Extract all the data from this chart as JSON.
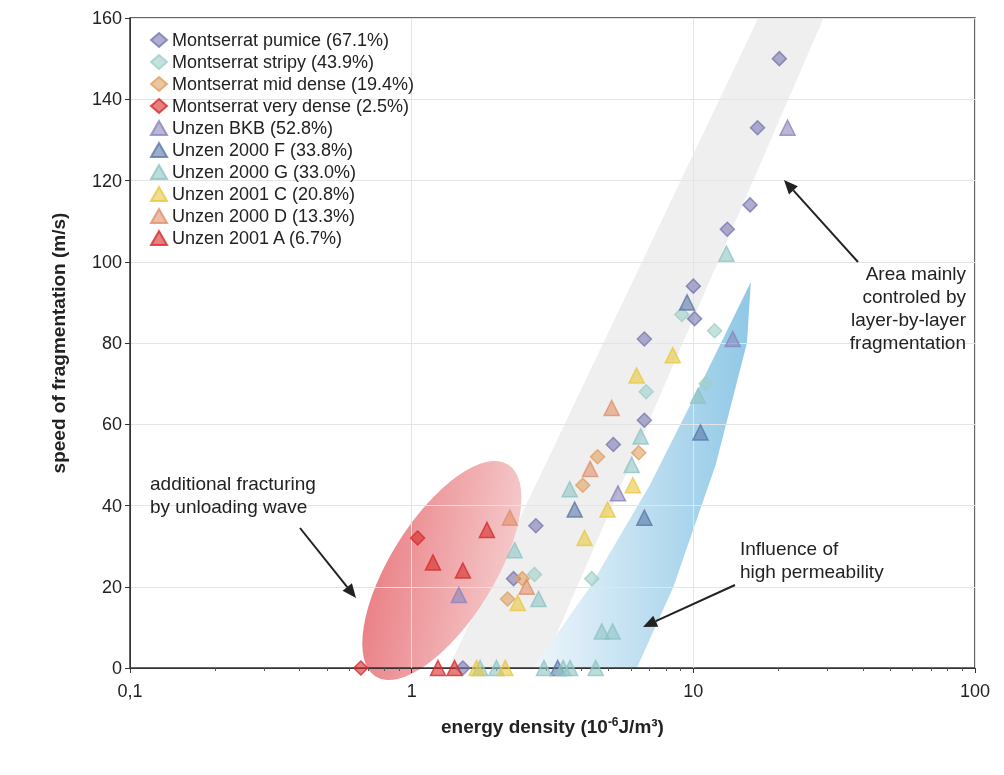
{
  "chart_data": {
    "type": "scatter",
    "xlabel": "energy density (10$^{-6}$J/m³)",
    "ylabel": "speed of fragmentation (m/s)",
    "log": "x",
    "xlim": [
      0.1,
      100
    ],
    "xticks": [
      {
        "value": 0.1,
        "label": "0,1"
      },
      1,
      10,
      100
    ],
    "ylim": [
      0,
      160
    ],
    "yticks": [
      0,
      20,
      40,
      60,
      80,
      100,
      120,
      140,
      160
    ],
    "grid": true,
    "legend": "top left",
    "annotations": [
      "additional fracturing\nby unloading wave",
      "Influence of\nhigh permeability",
      "Area mainly\ncontroled by\nlayer-by-layer\nfragmentation"
    ],
    "series": [
      {
        "name": "Montserrat pumice (67.1%)",
        "color": "#7b78b0",
        "marker": "diamond",
        "x": [
          20.2,
          16.9,
          15.9,
          13.2,
          10,
          10.1,
          6.7,
          6.7,
          5.2,
          2.76,
          2.3,
          1.52
        ],
        "values": [
          150,
          133,
          114,
          108,
          94,
          86,
          81,
          61,
          55,
          35,
          22,
          0
        ]
      },
      {
        "name": "Montserrat stripy (43.9%)",
        "color": "#9fcfc8",
        "marker": "diamond",
        "x": [
          9.1,
          11.9,
          6.8,
          11.1,
          2.73,
          4.36
        ],
        "values": [
          87,
          83,
          68,
          70,
          23,
          22
        ]
      },
      {
        "name": "Montserrat mid dense (19.4%)",
        "color": "#e0a060",
        "marker": "diamond",
        "x": [
          6.4,
          4.57,
          4.05,
          2.47,
          2.19
        ],
        "values": [
          53,
          52,
          45,
          22,
          17
        ]
      },
      {
        "name": "Montserrat very dense (2.5%)",
        "color": "#d62c2c",
        "marker": "diamond",
        "x": [
          1.05,
          0.66
        ],
        "values": [
          32,
          0
        ]
      },
      {
        "name": "Unzen BKB (52.8%)",
        "color": "#8a86bd",
        "marker": "triangle",
        "x": [
          21.6,
          13.8,
          5.4,
          1.47
        ],
        "values": [
          133,
          81,
          43,
          18
        ]
      },
      {
        "name": "Unzen 2000 F (33.8%)",
        "color": "#5a78a8",
        "marker": "triangle",
        "x": [
          9.5,
          10.6,
          3.79,
          6.7,
          3.3
        ],
        "values": [
          90,
          58,
          39,
          37,
          0
        ]
      },
      {
        "name": "Unzen 2000 G (33.0%)",
        "color": "#8fc4c4",
        "marker": "triangle",
        "x": [
          13.1,
          10.4,
          6.5,
          6.04,
          3.64,
          2.32,
          2.82,
          4.73,
          5.17,
          1.75,
          2.0,
          2.95,
          3.45,
          3.65,
          4.5
        ],
        "values": [
          102,
          67,
          57,
          50,
          44,
          29,
          17,
          9,
          9,
          0,
          0,
          0,
          0,
          0,
          0
        ]
      },
      {
        "name": "Unzen 2001 C (20.8%)",
        "color": "#e8c840",
        "marker": "triangle",
        "x": [
          8.45,
          6.29,
          6.1,
          4.96,
          4.11,
          2.38,
          1.7,
          2.15
        ],
        "values": [
          77,
          72,
          45,
          39,
          32,
          16,
          0,
          0
        ]
      },
      {
        "name": "Unzen 2000 D (13.3%)",
        "color": "#e0906a",
        "marker": "triangle",
        "x": [
          5.13,
          4.3,
          2.23,
          2.56
        ],
        "values": [
          64,
          49,
          37,
          20
        ]
      },
      {
        "name": "Unzen 2001 A (6.7%)",
        "color": "#d62c2c",
        "marker": "triangle",
        "x": [
          1.85,
          1.19,
          1.52,
          1.24,
          1.42
        ],
        "values": [
          34,
          26,
          24,
          0,
          0
        ]
      }
    ]
  }
}
